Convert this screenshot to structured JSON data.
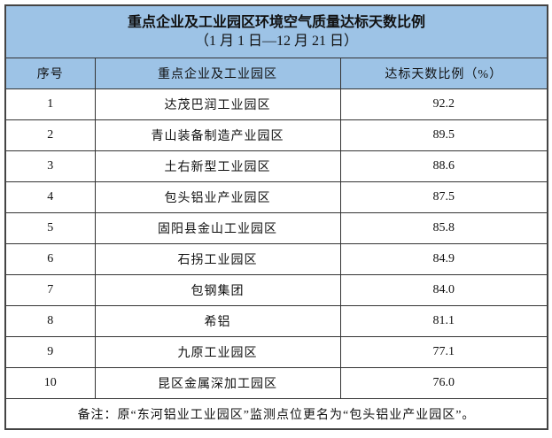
{
  "title": "重点企业及工业园区环境空气质量达标天数比例",
  "subtitle": "（1 月 1 日—12 月 21 日）",
  "headers": [
    "序号",
    "重点企业及工业园区",
    "达标天数比例（%）"
  ],
  "rows": [
    {
      "no": "1",
      "name": "达茂巴润工业园区",
      "ratio": "92.2"
    },
    {
      "no": "2",
      "name": "青山装备制造产业园区",
      "ratio": "89.5"
    },
    {
      "no": "3",
      "name": "土右新型工业园区",
      "ratio": "88.6"
    },
    {
      "no": "4",
      "name": "包头铝业产业园区",
      "ratio": "87.5"
    },
    {
      "no": "5",
      "name": "固阳县金山工业园区",
      "ratio": "85.8"
    },
    {
      "no": "6",
      "name": "石拐工业园区",
      "ratio": "84.9"
    },
    {
      "no": "7",
      "name": "包钢集团",
      "ratio": "84.0"
    },
    {
      "no": "8",
      "name": "希铝",
      "ratio": "81.1"
    },
    {
      "no": "9",
      "name": "九原工业园区",
      "ratio": "77.1"
    },
    {
      "no": "10",
      "name": "昆区金属深加工园区",
      "ratio": "76.0"
    }
  ],
  "note": "备注：原“东河铝业工业园区”监测点位更名为“包头铝业产业园区”。",
  "colors": {
    "header_bg": "#9DC3E6",
    "border": "#333333"
  }
}
